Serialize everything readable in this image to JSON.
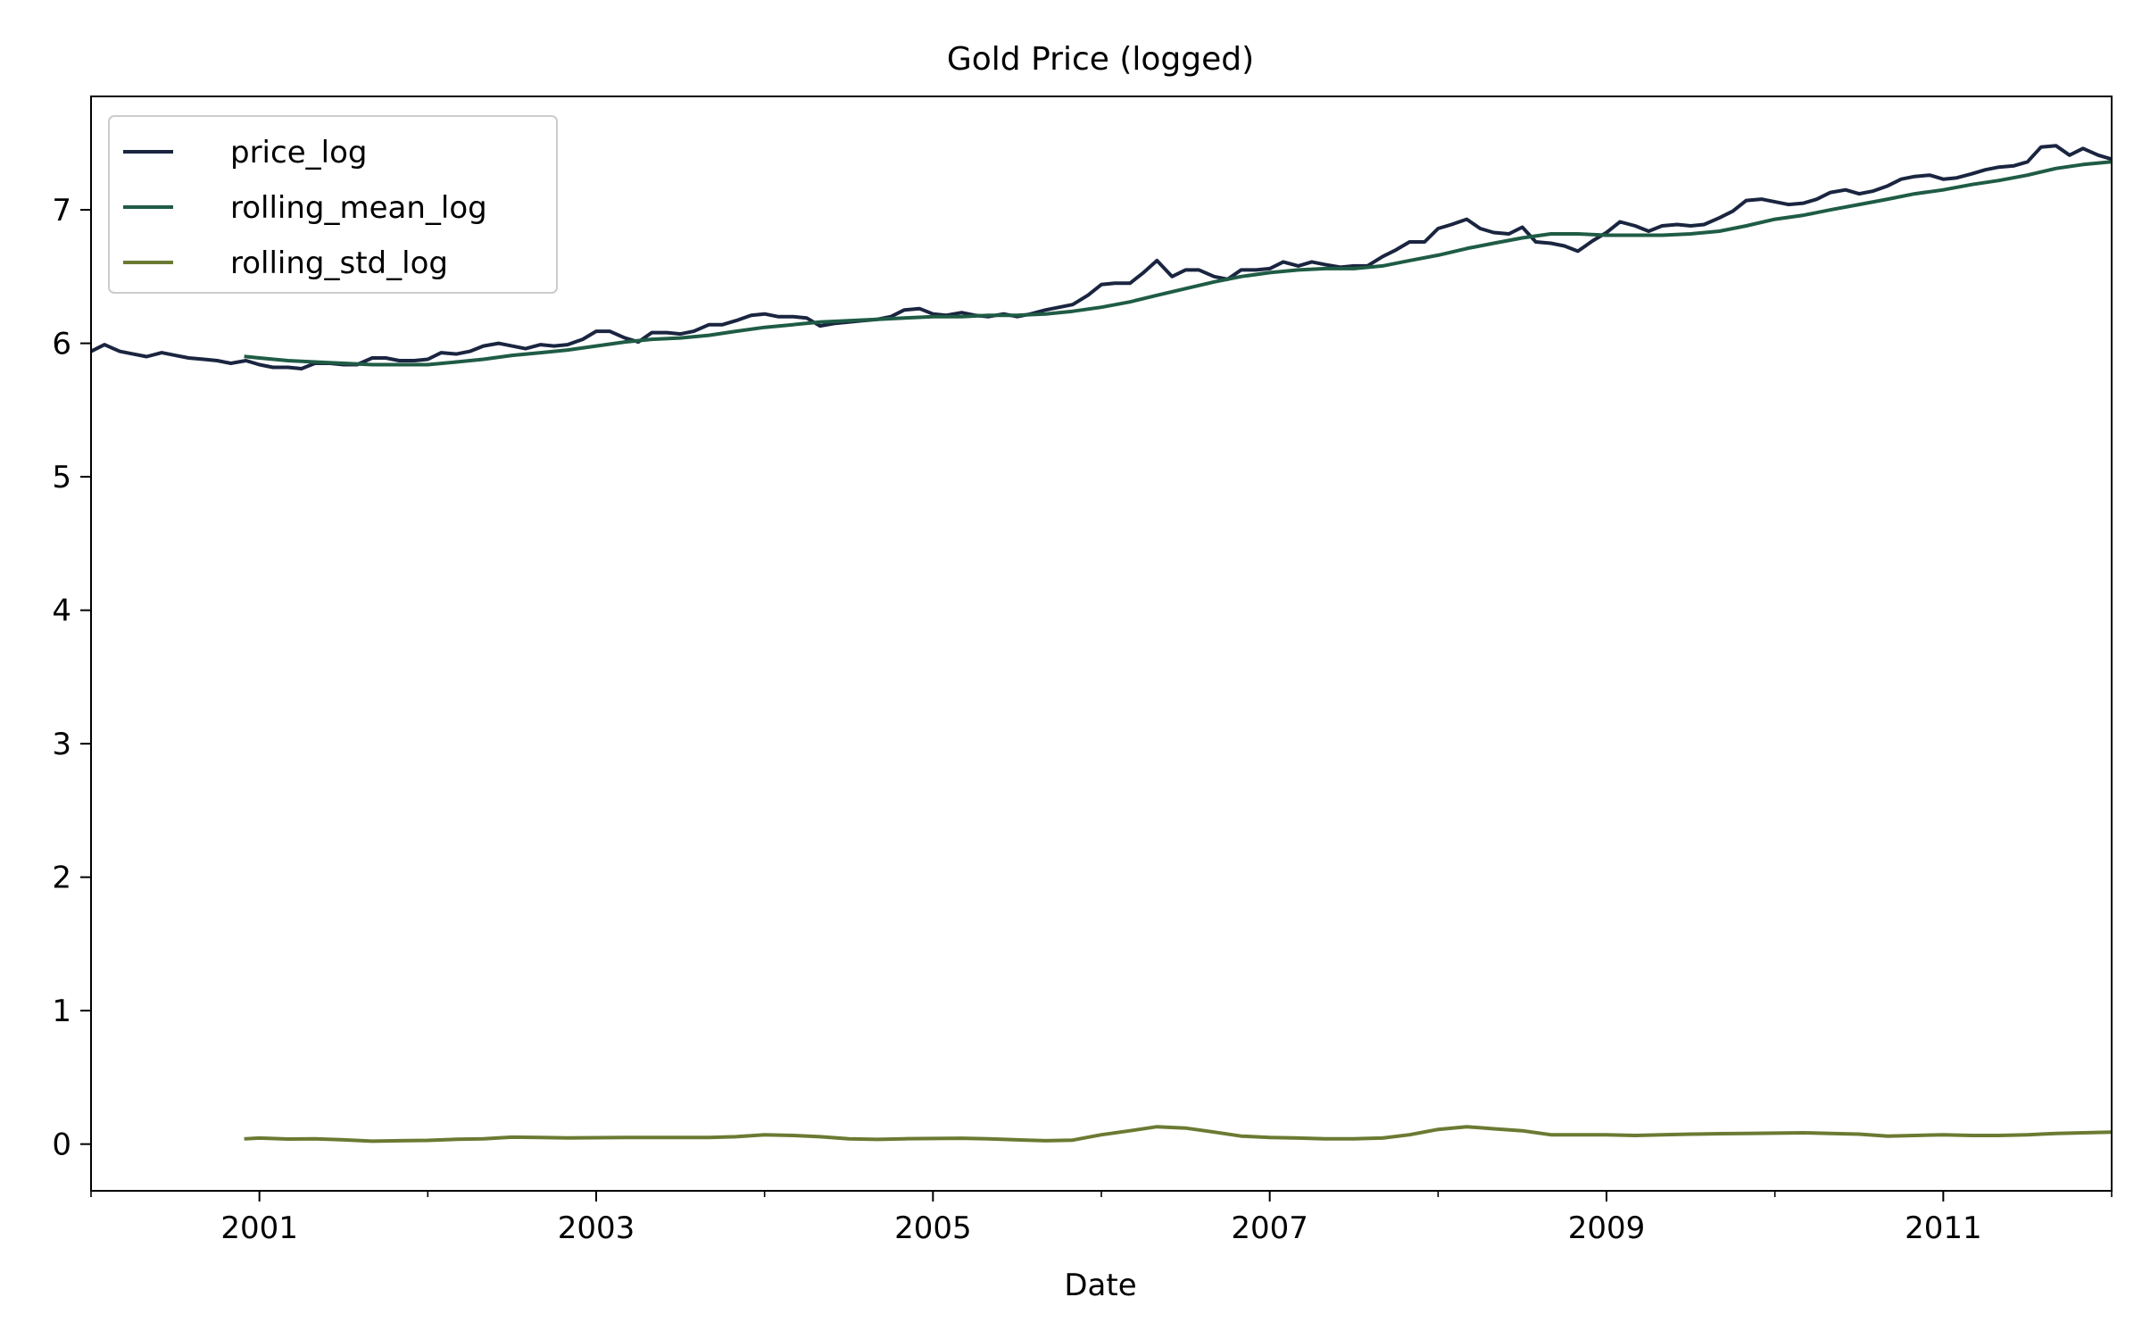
{
  "chart_data": {
    "type": "line",
    "title": "Gold Price (logged)",
    "xlabel": "Date",
    "ylabel": "",
    "xlim": [
      2000.0,
      2012.0
    ],
    "ylim": [
      -0.35,
      7.85
    ],
    "grid": false,
    "legend_position": "upper-left",
    "x_major_ticks": [
      2001,
      2003,
      2005,
      2007,
      2009,
      2011
    ],
    "x_minor_ticks": [
      2000,
      2002,
      2004,
      2006,
      2008,
      2010,
      2012
    ],
    "x_tick_labels": [
      "2001",
      "2003",
      "2005",
      "2007",
      "2009",
      "2011"
    ],
    "y_ticks": [
      0,
      1,
      2,
      3,
      4,
      5,
      6,
      7
    ],
    "y_tick_labels": [
      "0",
      "1",
      "2",
      "3",
      "4",
      "5",
      "6",
      "7"
    ],
    "series": [
      {
        "name": "price_log",
        "color": "#1a2540",
        "points": [
          [
            2000.0,
            5.94
          ],
          [
            2000.08,
            5.99
          ],
          [
            2000.17,
            5.94
          ],
          [
            2000.25,
            5.92
          ],
          [
            2000.33,
            5.9
          ],
          [
            2000.42,
            5.93
          ],
          [
            2000.5,
            5.91
          ],
          [
            2000.58,
            5.89
          ],
          [
            2000.67,
            5.88
          ],
          [
            2000.75,
            5.87
          ],
          [
            2000.83,
            5.85
          ],
          [
            2000.92,
            5.87
          ],
          [
            2001.0,
            5.84
          ],
          [
            2001.08,
            5.82
          ],
          [
            2001.17,
            5.82
          ],
          [
            2001.25,
            5.81
          ],
          [
            2001.33,
            5.85
          ],
          [
            2001.42,
            5.85
          ],
          [
            2001.5,
            5.84
          ],
          [
            2001.58,
            5.84
          ],
          [
            2001.67,
            5.89
          ],
          [
            2001.75,
            5.89
          ],
          [
            2001.83,
            5.87
          ],
          [
            2001.92,
            5.87
          ],
          [
            2002.0,
            5.88
          ],
          [
            2002.08,
            5.93
          ],
          [
            2002.17,
            5.92
          ],
          [
            2002.25,
            5.94
          ],
          [
            2002.33,
            5.98
          ],
          [
            2002.42,
            6.0
          ],
          [
            2002.5,
            5.98
          ],
          [
            2002.58,
            5.96
          ],
          [
            2002.67,
            5.99
          ],
          [
            2002.75,
            5.98
          ],
          [
            2002.83,
            5.99
          ],
          [
            2002.92,
            6.03
          ],
          [
            2003.0,
            6.09
          ],
          [
            2003.08,
            6.09
          ],
          [
            2003.17,
            6.04
          ],
          [
            2003.25,
            6.01
          ],
          [
            2003.33,
            6.08
          ],
          [
            2003.42,
            6.08
          ],
          [
            2003.5,
            6.07
          ],
          [
            2003.58,
            6.09
          ],
          [
            2003.67,
            6.14
          ],
          [
            2003.75,
            6.14
          ],
          [
            2003.83,
            6.17
          ],
          [
            2003.92,
            6.21
          ],
          [
            2004.0,
            6.22
          ],
          [
            2004.08,
            6.2
          ],
          [
            2004.17,
            6.2
          ],
          [
            2004.25,
            6.19
          ],
          [
            2004.33,
            6.13
          ],
          [
            2004.42,
            6.15
          ],
          [
            2004.5,
            6.16
          ],
          [
            2004.58,
            6.17
          ],
          [
            2004.67,
            6.18
          ],
          [
            2004.75,
            6.2
          ],
          [
            2004.83,
            6.25
          ],
          [
            2004.92,
            6.26
          ],
          [
            2005.0,
            6.22
          ],
          [
            2005.08,
            6.21
          ],
          [
            2005.17,
            6.23
          ],
          [
            2005.25,
            6.21
          ],
          [
            2005.33,
            6.2
          ],
          [
            2005.42,
            6.22
          ],
          [
            2005.5,
            6.2
          ],
          [
            2005.58,
            6.22
          ],
          [
            2005.67,
            6.25
          ],
          [
            2005.75,
            6.27
          ],
          [
            2005.83,
            6.29
          ],
          [
            2005.92,
            6.36
          ],
          [
            2006.0,
            6.44
          ],
          [
            2006.08,
            6.45
          ],
          [
            2006.17,
            6.45
          ],
          [
            2006.25,
            6.53
          ],
          [
            2006.33,
            6.62
          ],
          [
            2006.42,
            6.5
          ],
          [
            2006.5,
            6.55
          ],
          [
            2006.58,
            6.55
          ],
          [
            2006.67,
            6.5
          ],
          [
            2006.75,
            6.48
          ],
          [
            2006.83,
            6.55
          ],
          [
            2006.92,
            6.55
          ],
          [
            2007.0,
            6.56
          ],
          [
            2007.08,
            6.61
          ],
          [
            2007.17,
            6.58
          ],
          [
            2007.25,
            6.61
          ],
          [
            2007.33,
            6.59
          ],
          [
            2007.42,
            6.57
          ],
          [
            2007.5,
            6.58
          ],
          [
            2007.58,
            6.58
          ],
          [
            2007.67,
            6.65
          ],
          [
            2007.75,
            6.7
          ],
          [
            2007.83,
            6.76
          ],
          [
            2007.92,
            6.76
          ],
          [
            2008.0,
            6.86
          ],
          [
            2008.08,
            6.89
          ],
          [
            2008.17,
            6.93
          ],
          [
            2008.25,
            6.86
          ],
          [
            2008.33,
            6.83
          ],
          [
            2008.42,
            6.82
          ],
          [
            2008.5,
            6.87
          ],
          [
            2008.58,
            6.76
          ],
          [
            2008.67,
            6.75
          ],
          [
            2008.75,
            6.73
          ],
          [
            2008.83,
            6.69
          ],
          [
            2008.92,
            6.77
          ],
          [
            2009.0,
            6.83
          ],
          [
            2009.08,
            6.91
          ],
          [
            2009.17,
            6.88
          ],
          [
            2009.25,
            6.84
          ],
          [
            2009.33,
            6.88
          ],
          [
            2009.42,
            6.89
          ],
          [
            2009.5,
            6.88
          ],
          [
            2009.58,
            6.89
          ],
          [
            2009.67,
            6.94
          ],
          [
            2009.75,
            6.99
          ],
          [
            2009.83,
            7.07
          ],
          [
            2009.92,
            7.08
          ],
          [
            2010.0,
            7.06
          ],
          [
            2010.08,
            7.04
          ],
          [
            2010.17,
            7.05
          ],
          [
            2010.25,
            7.08
          ],
          [
            2010.33,
            7.13
          ],
          [
            2010.42,
            7.15
          ],
          [
            2010.5,
            7.12
          ],
          [
            2010.58,
            7.14
          ],
          [
            2010.67,
            7.18
          ],
          [
            2010.75,
            7.23
          ],
          [
            2010.83,
            7.25
          ],
          [
            2010.92,
            7.26
          ],
          [
            2011.0,
            7.23
          ],
          [
            2011.08,
            7.24
          ],
          [
            2011.17,
            7.27
          ],
          [
            2011.25,
            7.3
          ],
          [
            2011.33,
            7.32
          ],
          [
            2011.42,
            7.33
          ],
          [
            2011.5,
            7.36
          ],
          [
            2011.58,
            7.47
          ],
          [
            2011.67,
            7.48
          ],
          [
            2011.75,
            7.41
          ],
          [
            2011.83,
            7.46
          ],
          [
            2011.92,
            7.41
          ],
          [
            2012.0,
            7.38
          ]
        ]
      },
      {
        "name": "rolling_mean_log",
        "color": "#1f5c45",
        "points": [
          [
            2000.92,
            5.9
          ],
          [
            2001.0,
            5.89
          ],
          [
            2001.17,
            5.87
          ],
          [
            2001.33,
            5.86
          ],
          [
            2001.5,
            5.85
          ],
          [
            2001.67,
            5.84
          ],
          [
            2001.83,
            5.84
          ],
          [
            2002.0,
            5.84
          ],
          [
            2002.17,
            5.86
          ],
          [
            2002.33,
            5.88
          ],
          [
            2002.5,
            5.91
          ],
          [
            2002.67,
            5.93
          ],
          [
            2002.83,
            5.95
          ],
          [
            2003.0,
            5.98
          ],
          [
            2003.17,
            6.01
          ],
          [
            2003.33,
            6.03
          ],
          [
            2003.5,
            6.04
          ],
          [
            2003.67,
            6.06
          ],
          [
            2003.83,
            6.09
          ],
          [
            2004.0,
            6.12
          ],
          [
            2004.17,
            6.14
          ],
          [
            2004.33,
            6.16
          ],
          [
            2004.5,
            6.17
          ],
          [
            2004.67,
            6.18
          ],
          [
            2004.83,
            6.19
          ],
          [
            2005.0,
            6.2
          ],
          [
            2005.17,
            6.2
          ],
          [
            2005.33,
            6.21
          ],
          [
            2005.5,
            6.21
          ],
          [
            2005.67,
            6.22
          ],
          [
            2005.83,
            6.24
          ],
          [
            2006.0,
            6.27
          ],
          [
            2006.17,
            6.31
          ],
          [
            2006.33,
            6.36
          ],
          [
            2006.5,
            6.41
          ],
          [
            2006.67,
            6.46
          ],
          [
            2006.83,
            6.5
          ],
          [
            2007.0,
            6.53
          ],
          [
            2007.17,
            6.55
          ],
          [
            2007.33,
            6.56
          ],
          [
            2007.5,
            6.56
          ],
          [
            2007.67,
            6.58
          ],
          [
            2007.83,
            6.62
          ],
          [
            2008.0,
            6.66
          ],
          [
            2008.17,
            6.71
          ],
          [
            2008.33,
            6.75
          ],
          [
            2008.5,
            6.79
          ],
          [
            2008.67,
            6.82
          ],
          [
            2008.83,
            6.82
          ],
          [
            2009.0,
            6.81
          ],
          [
            2009.17,
            6.81
          ],
          [
            2009.33,
            6.81
          ],
          [
            2009.5,
            6.82
          ],
          [
            2009.67,
            6.84
          ],
          [
            2009.83,
            6.88
          ],
          [
            2010.0,
            6.93
          ],
          [
            2010.17,
            6.96
          ],
          [
            2010.33,
            7.0
          ],
          [
            2010.5,
            7.04
          ],
          [
            2010.67,
            7.08
          ],
          [
            2010.83,
            7.12
          ],
          [
            2011.0,
            7.15
          ],
          [
            2011.17,
            7.19
          ],
          [
            2011.33,
            7.22
          ],
          [
            2011.5,
            7.26
          ],
          [
            2011.67,
            7.31
          ],
          [
            2011.83,
            7.34
          ],
          [
            2012.0,
            7.36
          ]
        ]
      },
      {
        "name": "rolling_std_log",
        "color": "#6b7a32",
        "points": [
          [
            2000.92,
            0.04
          ],
          [
            2001.0,
            0.045
          ],
          [
            2001.17,
            0.038
          ],
          [
            2001.33,
            0.04
          ],
          [
            2001.5,
            0.032
          ],
          [
            2001.67,
            0.022
          ],
          [
            2001.83,
            0.025
          ],
          [
            2002.0,
            0.028
          ],
          [
            2002.17,
            0.036
          ],
          [
            2002.33,
            0.04
          ],
          [
            2002.5,
            0.052
          ],
          [
            2002.67,
            0.05
          ],
          [
            2002.83,
            0.046
          ],
          [
            2003.0,
            0.048
          ],
          [
            2003.17,
            0.05
          ],
          [
            2003.33,
            0.05
          ],
          [
            2003.5,
            0.05
          ],
          [
            2003.67,
            0.05
          ],
          [
            2003.83,
            0.055
          ],
          [
            2004.0,
            0.07
          ],
          [
            2004.17,
            0.065
          ],
          [
            2004.33,
            0.055
          ],
          [
            2004.5,
            0.04
          ],
          [
            2004.67,
            0.035
          ],
          [
            2004.83,
            0.04
          ],
          [
            2005.0,
            0.042
          ],
          [
            2005.17,
            0.044
          ],
          [
            2005.33,
            0.04
          ],
          [
            2005.5,
            0.032
          ],
          [
            2005.67,
            0.025
          ],
          [
            2005.83,
            0.03
          ],
          [
            2006.0,
            0.07
          ],
          [
            2006.17,
            0.1
          ],
          [
            2006.33,
            0.13
          ],
          [
            2006.5,
            0.12
          ],
          [
            2006.67,
            0.09
          ],
          [
            2006.83,
            0.06
          ],
          [
            2007.0,
            0.05
          ],
          [
            2007.17,
            0.045
          ],
          [
            2007.33,
            0.04
          ],
          [
            2007.5,
            0.04
          ],
          [
            2007.67,
            0.045
          ],
          [
            2007.83,
            0.07
          ],
          [
            2008.0,
            0.11
          ],
          [
            2008.17,
            0.13
          ],
          [
            2008.33,
            0.115
          ],
          [
            2008.5,
            0.1
          ],
          [
            2008.67,
            0.07
          ],
          [
            2008.83,
            0.07
          ],
          [
            2009.0,
            0.07
          ],
          [
            2009.17,
            0.065
          ],
          [
            2009.33,
            0.07
          ],
          [
            2009.5,
            0.075
          ],
          [
            2009.67,
            0.078
          ],
          [
            2009.83,
            0.08
          ],
          [
            2010.0,
            0.082
          ],
          [
            2010.17,
            0.085
          ],
          [
            2010.33,
            0.08
          ],
          [
            2010.5,
            0.075
          ],
          [
            2010.67,
            0.06
          ],
          [
            2010.83,
            0.065
          ],
          [
            2011.0,
            0.07
          ],
          [
            2011.17,
            0.065
          ],
          [
            2011.33,
            0.065
          ],
          [
            2011.5,
            0.07
          ],
          [
            2011.67,
            0.08
          ],
          [
            2011.83,
            0.085
          ],
          [
            2012.0,
            0.09
          ]
        ]
      }
    ]
  }
}
